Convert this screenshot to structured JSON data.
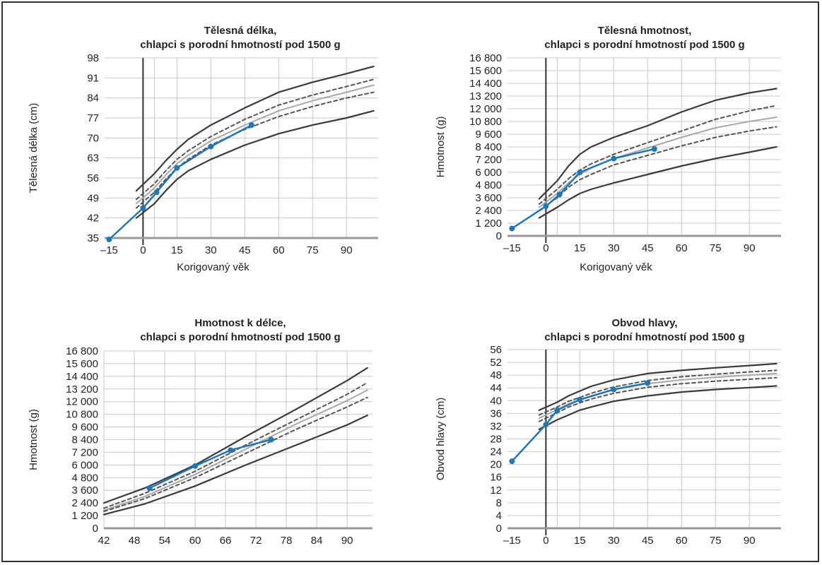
{
  "chart_data": [
    {
      "type": "line",
      "title": [
        "Tělesná délka,",
        "chlapci s porodní hmotností pod 1500 g"
      ],
      "xlabel": "Korigovaný věk",
      "ylabel": "Tělesná délka (cm)",
      "xlim": [
        -17,
        104
      ],
      "ylim": [
        35,
        98
      ],
      "xticks": [
        -15,
        0,
        15,
        30,
        45,
        60,
        75,
        90
      ],
      "xtick_labels": [
        "–15",
        "0",
        "15",
        "30",
        "45",
        "60",
        "75",
        "90"
      ],
      "yticks": [
        35,
        42,
        49,
        56,
        63,
        70,
        77,
        84,
        91,
        98
      ],
      "ytick_labels": [
        "35",
        "42",
        "49",
        "56",
        "63",
        "70",
        "77",
        "84",
        "91",
        "98"
      ],
      "xgrid": [
        5,
        15,
        30,
        45,
        60,
        75,
        90
      ],
      "vline": 0,
      "series": [
        {
          "role": "bound-high",
          "x": [
            -3,
            5,
            10,
            15,
            20,
            30,
            45,
            60,
            75,
            90,
            102
          ],
          "values": [
            51.5,
            57.5,
            62,
            66,
            69.5,
            74.5,
            80.5,
            86,
            89.5,
            92.5,
            95
          ]
        },
        {
          "role": "band-high",
          "x": [
            -3,
            5,
            10,
            15,
            20,
            30,
            45,
            60,
            75,
            90,
            102
          ],
          "values": [
            48.5,
            54,
            58.5,
            62.5,
            65.5,
            70.5,
            76.5,
            81.5,
            85,
            88,
            90.5
          ]
        },
        {
          "role": "median",
          "x": [
            -3,
            5,
            10,
            15,
            20,
            30,
            45,
            60,
            75,
            90,
            102
          ],
          "values": [
            47,
            52.5,
            57,
            61,
            64,
            69,
            74.5,
            79.5,
            83,
            86,
            88.5
          ]
        },
        {
          "role": "band-low",
          "x": [
            -3,
            5,
            10,
            15,
            20,
            30,
            45,
            60,
            75,
            90,
            102
          ],
          "values": [
            45.5,
            51,
            55.5,
            59.5,
            62.5,
            67.5,
            73,
            77.5,
            81,
            84,
            86
          ]
        },
        {
          "role": "bound-low",
          "x": [
            -3,
            5,
            10,
            15,
            20,
            30,
            45,
            60,
            75,
            90,
            102
          ],
          "values": [
            42,
            47,
            51.5,
            55.5,
            58.5,
            62.5,
            67.5,
            71.5,
            74.5,
            77,
            79.5
          ]
        },
        {
          "role": "patient",
          "x": [
            -15,
            0,
            6,
            15,
            30,
            48
          ],
          "values": [
            34.5,
            45.5,
            51,
            59.5,
            67,
            74.5
          ]
        }
      ]
    },
    {
      "type": "line",
      "title": [
        "Tělesná hmotnost,",
        "chlapci s porodní hmotností pod 1500 g"
      ],
      "xlabel": "Korigovaný věk",
      "ylabel": "Hmotnost (g)",
      "xlim": [
        -17,
        104
      ],
      "ylim": [
        0,
        16800
      ],
      "xticks": [
        -15,
        0,
        15,
        30,
        45,
        60,
        75,
        90
      ],
      "xtick_labels": [
        "–15",
        "0",
        "15",
        "30",
        "45",
        "60",
        "75",
        "90"
      ],
      "yticks": [
        0,
        1200,
        2400,
        3600,
        4800,
        6000,
        7200,
        8400,
        9600,
        10800,
        12000,
        13200,
        14400,
        15600,
        16800
      ],
      "ytick_labels": [
        "0",
        "1 200",
        "2 400",
        "3 600",
        "4 800",
        "6 000",
        "7 200",
        "8 400",
        "9 600",
        "10 800",
        "12 000",
        "13 200",
        "14 400",
        "15 600",
        "16 800"
      ],
      "xgrid": [
        5,
        15,
        30,
        45,
        60,
        75,
        90
      ],
      "vline": 0,
      "series": [
        {
          "role": "bound-high",
          "x": [
            -3,
            5,
            10,
            15,
            20,
            30,
            45,
            60,
            75,
            90,
            102
          ],
          "values": [
            3500,
            5200,
            6600,
            7700,
            8400,
            9300,
            10400,
            11700,
            12800,
            13500,
            13900
          ]
        },
        {
          "role": "band-high",
          "x": [
            -3,
            5,
            10,
            15,
            20,
            30,
            45,
            60,
            75,
            90,
            102
          ],
          "values": [
            3000,
            4400,
            5400,
            6200,
            6800,
            7700,
            8800,
            9900,
            11000,
            11800,
            12300
          ]
        },
        {
          "role": "median",
          "x": [
            -3,
            5,
            10,
            15,
            20,
            30,
            45,
            60,
            75,
            90,
            102
          ],
          "values": [
            2700,
            4000,
            5000,
            5800,
            6400,
            7300,
            8300,
            9300,
            10200,
            10800,
            11200
          ]
        },
        {
          "role": "band-low",
          "x": [
            -3,
            5,
            10,
            15,
            20,
            30,
            45,
            60,
            75,
            90,
            102
          ],
          "values": [
            2400,
            3600,
            4600,
            5300,
            5800,
            6700,
            7600,
            8500,
            9300,
            9900,
            10300
          ]
        },
        {
          "role": "bound-low",
          "x": [
            -3,
            5,
            10,
            15,
            20,
            30,
            45,
            60,
            75,
            90,
            102
          ],
          "values": [
            1700,
            2700,
            3400,
            4000,
            4400,
            5000,
            5800,
            6600,
            7300,
            7900,
            8400
          ]
        },
        {
          "role": "patient",
          "x": [
            -15,
            0,
            6,
            15,
            30,
            48
          ],
          "values": [
            700,
            2800,
            3900,
            6000,
            7300,
            8200
          ]
        }
      ]
    },
    {
      "type": "line",
      "title": [
        "Hmotnost k délce,",
        "chlapci s porodní hmotností pod 1500 g"
      ],
      "xlabel": "",
      "ylabel": "Hmotnost (g)",
      "xlim": [
        42,
        95
      ],
      "ylim": [
        0,
        16800
      ],
      "xticks": [
        42,
        48,
        54,
        60,
        66,
        72,
        78,
        84,
        90
      ],
      "xtick_labels": [
        "42",
        "48",
        "54",
        "60",
        "66",
        "72",
        "78",
        "84",
        "90"
      ],
      "yticks": [
        0,
        1200,
        2400,
        3600,
        4800,
        6000,
        7200,
        8400,
        9600,
        10800,
        12000,
        13200,
        14400,
        15600,
        16800
      ],
      "ytick_labels": [
        "0",
        "1 200",
        "2 400",
        "3 600",
        "4 800",
        "6 000",
        "7 200",
        "8 400",
        "9 600",
        "10 800",
        "12 000",
        "13 200",
        "14 400",
        "15 600",
        "16 800"
      ],
      "xgrid": [
        42,
        48,
        54,
        60,
        66,
        72,
        78,
        84,
        90
      ],
      "series": [
        {
          "role": "bound-high",
          "x": [
            42,
            50,
            60,
            70,
            80,
            90,
            94
          ],
          "values": [
            2400,
            3800,
            6000,
            8700,
            11300,
            14000,
            15200
          ]
        },
        {
          "role": "band-high",
          "x": [
            42,
            50,
            60,
            70,
            80,
            90,
            94
          ],
          "values": [
            1900,
            3300,
            5400,
            7900,
            10300,
            12700,
            13800
          ]
        },
        {
          "role": "median",
          "x": [
            42,
            50,
            60,
            70,
            80,
            90,
            94
          ],
          "values": [
            1700,
            3000,
            5100,
            7500,
            9900,
            12100,
            13100
          ]
        },
        {
          "role": "band-low",
          "x": [
            42,
            50,
            60,
            70,
            80,
            90,
            94
          ],
          "values": [
            1600,
            2800,
            4800,
            7100,
            9400,
            11500,
            12400
          ]
        },
        {
          "role": "bound-low",
          "x": [
            42,
            50,
            60,
            70,
            80,
            90,
            94
          ],
          "values": [
            1300,
            2300,
            4000,
            6000,
            7900,
            9800,
            10700
          ]
        },
        {
          "role": "patient",
          "x": [
            51,
            60,
            67,
            75
          ],
          "values": [
            3800,
            5900,
            7400,
            8400
          ]
        }
      ]
    },
    {
      "type": "line",
      "title": [
        "Obvod hlavy,",
        "chlapci s porodní hmotností pod 1500 g"
      ],
      "xlabel": "",
      "ylabel": "Obvod hlavy (cm)",
      "xlim": [
        -17,
        104
      ],
      "ylim": [
        0,
        56
      ],
      "xticks": [
        -15,
        0,
        15,
        30,
        45,
        60,
        75,
        90
      ],
      "xtick_labels": [
        "–15",
        "0",
        "15",
        "30",
        "45",
        "60",
        "75",
        "90"
      ],
      "yticks": [
        0,
        4,
        8,
        12,
        16,
        20,
        24,
        28,
        32,
        36,
        40,
        44,
        48,
        52,
        56
      ],
      "ytick_labels": [
        "0",
        "4",
        "8",
        "12",
        "16",
        "20",
        "24",
        "28",
        "32",
        "36",
        "40",
        "44",
        "48",
        "52",
        "56"
      ],
      "xgrid": [
        5,
        15,
        30,
        45,
        60,
        75,
        90
      ],
      "vline": 0,
      "series": [
        {
          "role": "bound-high",
          "x": [
            -3,
            5,
            10,
            15,
            20,
            30,
            45,
            60,
            75,
            90,
            102
          ],
          "values": [
            37,
            39.5,
            41.5,
            43,
            44.5,
            46.5,
            48.5,
            49.5,
            50.3,
            51,
            51.6
          ]
        },
        {
          "role": "band-high",
          "x": [
            -3,
            5,
            10,
            15,
            20,
            30,
            45,
            60,
            75,
            90,
            102
          ],
          "values": [
            35.5,
            38,
            39.8,
            41,
            42.3,
            44.3,
            46.3,
            47.5,
            48.3,
            49,
            49.5
          ]
        },
        {
          "role": "median",
          "x": [
            -3,
            5,
            10,
            15,
            20,
            30,
            45,
            60,
            75,
            90,
            102
          ],
          "values": [
            34.5,
            37.2,
            39,
            40.3,
            41.5,
            43.5,
            45.3,
            46.5,
            47.3,
            48,
            48.5
          ]
        },
        {
          "role": "band-low",
          "x": [
            -3,
            5,
            10,
            15,
            20,
            30,
            45,
            60,
            75,
            90,
            102
          ],
          "values": [
            33.5,
            36.2,
            38,
            39.3,
            40.5,
            42.3,
            44.2,
            45.3,
            46.1,
            46.7,
            47.2
          ]
        },
        {
          "role": "bound-low",
          "x": [
            -3,
            5,
            10,
            15,
            20,
            30,
            45,
            60,
            75,
            90,
            102
          ],
          "values": [
            31,
            34,
            35.5,
            37,
            38,
            39.8,
            41.5,
            42.7,
            43.5,
            44.1,
            44.6
          ]
        },
        {
          "role": "patient",
          "x": [
            -15,
            0,
            5,
            15,
            30,
            45
          ],
          "values": [
            21,
            32.5,
            37,
            40.3,
            43.5,
            45.5
          ]
        }
      ]
    }
  ],
  "colors": {
    "bound": "#3a3a3a",
    "band": "#555555",
    "median": "#a8a8a8",
    "patient": "#2077b4",
    "grid": "#c8c8c8",
    "axis": "#333333"
  }
}
